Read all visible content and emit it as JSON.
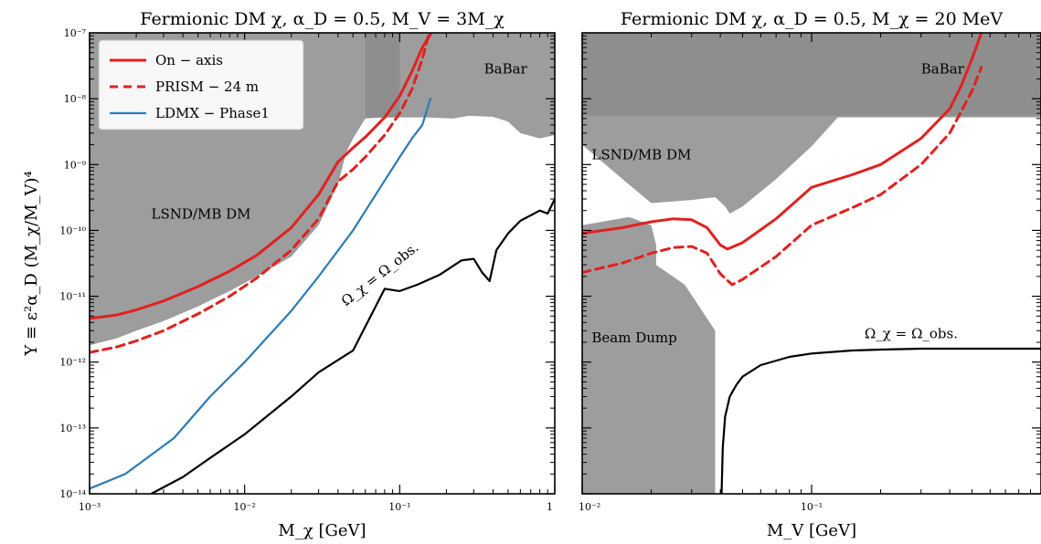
{
  "chart_data": [
    {
      "type": "line",
      "title": "Fermionic DM χ,  α_D = 0.5,  M_V = 3M_χ",
      "xlabel": "M_χ [GeV]",
      "ylabel": "Y ≡ ε²α_D (M_χ/M_V)⁴",
      "xscale": "log",
      "yscale": "log",
      "xlim": [
        0.001,
        1
      ],
      "ylim": [
        1e-14,
        1e-07
      ],
      "xticks": [
        {
          "value": 0.001,
          "label": "10⁻³"
        },
        {
          "value": 0.01,
          "label": "10⁻²"
        },
        {
          "value": 0.1,
          "label": "10⁻¹"
        },
        {
          "value": 1,
          "label": "1"
        }
      ],
      "yticks": [
        {
          "value": 1e-14,
          "label": "10⁻¹⁴"
        },
        {
          "value": 1e-13,
          "label": "10⁻¹³"
        },
        {
          "value": 1e-12,
          "label": "10⁻¹²"
        },
        {
          "value": 1e-11,
          "label": "10⁻¹¹"
        },
        {
          "value": 1e-10,
          "label": "10⁻¹⁰"
        },
        {
          "value": 1e-09,
          "label": "10⁻⁹"
        },
        {
          "value": 1e-08,
          "label": "10⁻⁸"
        },
        {
          "value": 1e-07,
          "label": "10⁻⁷"
        }
      ],
      "legend": {
        "location": "upper-left",
        "entries": [
          "On − axis",
          "PRISM − 24 m",
          "LDMX − Phase1"
        ]
      },
      "regions": [
        {
          "name": "LSND/MB DM",
          "color": "#8c8c8c",
          "points": [
            [
              0.001,
              1e-07
            ],
            [
              0.001,
              1.8e-12
            ],
            [
              0.0015,
              2.3e-12
            ],
            [
              0.002,
              3e-12
            ],
            [
              0.003,
              4.2e-12
            ],
            [
              0.005,
              7e-12
            ],
            [
              0.008,
              1.2e-11
            ],
            [
              0.012,
              2e-11
            ],
            [
              0.02,
              4e-11
            ],
            [
              0.03,
              1.2e-10
            ],
            [
              0.04,
              5e-10
            ],
            [
              0.045,
              1.5e-09
            ],
            [
              0.05,
              2.5e-09
            ],
            [
              0.06,
              5e-09
            ],
            [
              0.08,
              5.2e-09
            ],
            [
              0.1,
              5.2e-09
            ],
            [
              0.1,
              1e-07
            ]
          ]
        },
        {
          "name": "BaBar",
          "color": "#8c8c8c",
          "points": [
            [
              0.06,
              1e-07
            ],
            [
              0.06,
              5.2e-09
            ],
            [
              0.15,
              5.2e-09
            ],
            [
              0.22,
              5e-09
            ],
            [
              0.28,
              5.5e-09
            ],
            [
              0.4,
              5.3e-09
            ],
            [
              0.5,
              4.5e-09
            ],
            [
              0.6,
              3e-09
            ],
            [
              0.8,
              2.5e-09
            ],
            [
              1,
              2.8e-09
            ],
            [
              1,
              1e-07
            ]
          ]
        }
      ],
      "series": [
        {
          "name": "On − axis",
          "color": "#e0211f",
          "dash": "solid",
          "x": [
            0.001,
            0.0015,
            0.002,
            0.003,
            0.005,
            0.008,
            0.012,
            0.02,
            0.03,
            0.04,
            0.05,
            0.06,
            0.08,
            0.1,
            0.12,
            0.14,
            0.16
          ],
          "y": [
            4.6e-12,
            5.2e-12,
            6.2e-12,
            8.5e-12,
            1.4e-11,
            2.4e-11,
            4.2e-11,
            1.1e-10,
            3.5e-10,
            1.1e-09,
            1.8e-09,
            2.6e-09,
            5.2e-09,
            1.1e-08,
            2.6e-08,
            6e-08,
            1e-07
          ]
        },
        {
          "name": "PRISM − 24 m",
          "color": "#e0211f",
          "dash": "dashed",
          "x": [
            0.001,
            0.0015,
            0.002,
            0.003,
            0.005,
            0.008,
            0.012,
            0.02,
            0.03,
            0.04,
            0.05,
            0.06,
            0.08,
            0.1,
            0.12,
            0.14,
            0.155
          ],
          "y": [
            1.4e-12,
            1.7e-12,
            2.1e-12,
            3e-12,
            5.4e-12,
            1e-11,
            1.9e-11,
            5e-11,
            1.5e-10,
            5.5e-10,
            8.5e-10,
            1.3e-09,
            2.8e-09,
            6e-09,
            1.4e-08,
            4e-08,
            1e-07
          ]
        },
        {
          "name": "LDMX − Phase1",
          "color": "#2c7bb6",
          "dash": "solid",
          "x": [
            0.001,
            0.0017,
            0.0035,
            0.006,
            0.01,
            0.02,
            0.03,
            0.05,
            0.07,
            0.1,
            0.12,
            0.14,
            0.158
          ],
          "y": [
            1.2e-14,
            2e-14,
            7e-14,
            3e-13,
            1e-12,
            6e-12,
            2e-11,
            1e-10,
            3.5e-10,
            1.3e-09,
            2.5e-09,
            4e-09,
            1e-08
          ]
        },
        {
          "name": "Ω_χ = Ω_obs.",
          "color": "#000000",
          "dash": "solid",
          "x": [
            0.0025,
            0.004,
            0.006,
            0.01,
            0.02,
            0.03,
            0.05,
            0.08,
            0.1,
            0.13,
            0.18,
            0.25,
            0.3,
            0.34,
            0.38,
            0.42,
            0.5,
            0.6,
            0.8,
            0.9,
            1
          ],
          "y": [
            1e-14,
            1.8e-14,
            3.5e-14,
            8e-14,
            3e-13,
            7e-13,
            1.5e-12,
            1.3e-11,
            1.2e-11,
            1.5e-11,
            2.1e-11,
            3.5e-11,
            3.7e-11,
            2.3e-11,
            1.7e-11,
            5e-11,
            9e-11,
            1.4e-10,
            2e-10,
            1.8e-10,
            3e-10
          ]
        }
      ],
      "annotations": [
        {
          "text": "LSND/MB DM",
          "x": 0.0025,
          "y": 1.5e-10
        },
        {
          "text": "BaBar",
          "x": 0.35,
          "y": 2.4e-08
        },
        {
          "text": "Ω_χ = Ω_obs.",
          "x": 0.045,
          "y": 7e-12,
          "rotation": -38
        }
      ]
    },
    {
      "type": "line",
      "title": "Fermionic DM χ,  α_D = 0.5,  M_χ = 20 MeV",
      "xlabel": "M_V [GeV]",
      "ylabel": "",
      "xscale": "log",
      "yscale": "log",
      "xlim": [
        0.01,
        1
      ],
      "ylim": [
        1e-14,
        1e-07
      ],
      "xticks": [
        {
          "value": 0.01,
          "label": "10⁻²"
        },
        {
          "value": 0.1,
          "label": "10⁻¹"
        }
      ],
      "yticks": [],
      "regions": [
        {
          "name": "Beam Dump",
          "color": "#8c8c8c",
          "points": [
            [
              0.01,
              1e-14
            ],
            [
              0.01,
              1.2e-10
            ],
            [
              0.016,
              1.6e-10
            ],
            [
              0.02,
              1.2e-10
            ],
            [
              0.021,
              6e-11
            ],
            [
              0.021,
              3e-11
            ],
            [
              0.028,
              1.5e-11
            ],
            [
              0.038,
              3e-12
            ],
            [
              0.038,
              1e-14
            ]
          ]
        },
        {
          "name": "LSND/MB DM",
          "color": "#8c8c8c",
          "points": [
            [
              0.01,
              1e-07
            ],
            [
              0.01,
              2e-09
            ],
            [
              0.015,
              6e-10
            ],
            [
              0.02,
              2.6e-10
            ],
            [
              0.03,
              2.9e-10
            ],
            [
              0.038,
              3.2e-10
            ],
            [
              0.042,
              2.3e-10
            ],
            [
              0.044,
              1.8e-10
            ],
            [
              0.05,
              2.3e-10
            ],
            [
              0.07,
              6e-10
            ],
            [
              0.1,
              1.9e-09
            ],
            [
              0.13,
              5.2e-09
            ],
            [
              1,
              5.2e-09
            ],
            [
              1,
              1e-07
            ],
            [
              0.2,
              1e-07
            ]
          ]
        },
        {
          "name": "BaBar",
          "color": "#8c8c8c",
          "points": [
            [
              0.01,
              5.5e-09
            ],
            [
              1,
              5.5e-09
            ],
            [
              1,
              1e-07
            ],
            [
              0.01,
              1e-07
            ]
          ]
        }
      ],
      "series": [
        {
          "name": "On − axis",
          "color": "#e0211f",
          "dash": "solid",
          "x": [
            0.01,
            0.015,
            0.02,
            0.025,
            0.03,
            0.035,
            0.04,
            0.043,
            0.05,
            0.07,
            0.1,
            0.15,
            0.2,
            0.3,
            0.4,
            0.45,
            0.5,
            0.55
          ],
          "y": [
            9e-11,
            1.1e-10,
            1.35e-10,
            1.5e-10,
            1.45e-10,
            1.1e-10,
            6e-11,
            5.2e-11,
            6.5e-11,
            1.5e-10,
            4.5e-10,
            7e-10,
            1e-09,
            2.5e-09,
            7e-09,
            1.6e-08,
            4e-08,
            1e-07
          ]
        },
        {
          "name": "PRISM − 24 m",
          "color": "#e0211f",
          "dash": "dashed",
          "x": [
            0.01,
            0.015,
            0.02,
            0.025,
            0.03,
            0.035,
            0.04,
            0.045,
            0.05,
            0.07,
            0.1,
            0.15,
            0.2,
            0.3,
            0.4,
            0.5,
            0.55
          ],
          "y": [
            2.3e-11,
            3.2e-11,
            4.5e-11,
            5.5e-11,
            5.7e-11,
            4.5e-11,
            2.2e-11,
            1.5e-11,
            1.8e-11,
            4e-11,
            1.2e-10,
            2.2e-10,
            3.5e-10,
            1e-09,
            3e-09,
            1.3e-08,
            3e-08
          ]
        },
        {
          "name": "Ω_χ = Ω_obs.",
          "color": "#000000",
          "dash": "solid",
          "x": [
            0.0405,
            0.041,
            0.042,
            0.044,
            0.047,
            0.05,
            0.06,
            0.08,
            0.1,
            0.15,
            0.2,
            0.3,
            0.5,
            1
          ],
          "y": [
            1e-14,
            5e-14,
            1.5e-13,
            3e-13,
            4.5e-13,
            6e-13,
            9e-13,
            1.2e-12,
            1.35e-12,
            1.5e-12,
            1.55e-12,
            1.6e-12,
            1.6e-12,
            1.6e-12
          ]
        }
      ],
      "annotations": [
        {
          "text": "BaBar",
          "x": 0.3,
          "y": 2.4e-08
        },
        {
          "text": "LSND/MB DM",
          "x": 0.011,
          "y": 1.2e-09
        },
        {
          "text": "Beam Dump",
          "x": 0.011,
          "y": 2e-12
        },
        {
          "text": "Ω_χ = Ω_obs.",
          "x": 0.17,
          "y": 2.3e-12
        }
      ]
    }
  ]
}
